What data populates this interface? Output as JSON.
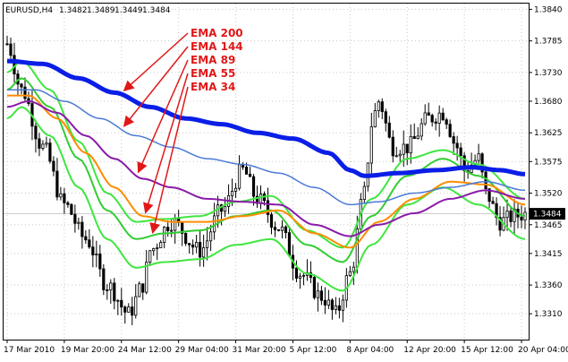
{
  "chart_data": {
    "type": "line",
    "title": "EURUSD,H4",
    "ohlc_header": [
      "1.3482",
      "1.3489",
      "1.3449",
      "1.3484"
    ],
    "ylim": [
      1.3265,
      1.385
    ],
    "y_ticks": [
      1.384,
      1.3785,
      1.373,
      1.368,
      1.3625,
      1.3575,
      1.352,
      1.3465,
      1.3415,
      1.336,
      1.331
    ],
    "y_tick_labels": [
      "1.3840",
      "1.3785",
      "1.3730",
      "1.3680",
      "1.3625",
      "1.3575",
      "1.3520",
      "1.3465",
      "1.3415",
      "1.3360",
      "1.3310"
    ],
    "current_price": "1.3484",
    "x_ticks": [
      {
        "label": "17 Mar 2010",
        "i": 0
      },
      {
        "label": "19 Mar 20:00",
        "i": 16
      },
      {
        "label": "24 Mar 12:00",
        "i": 32
      },
      {
        "label": "29 Mar 04:00",
        "i": 48
      },
      {
        "label": "31 Mar 20:00",
        "i": 64
      },
      {
        "label": "5 Apr 12:00",
        "i": 80
      },
      {
        "label": "8 Apr 04:00",
        "i": 96
      },
      {
        "label": "12 Apr 20:00",
        "i": 112
      },
      {
        "label": "15 Apr 12:00",
        "i": 128
      },
      {
        "label": "20 Apr 04:00",
        "i": 144
      }
    ],
    "bar_count": 146,
    "price_keypoints": [
      [
        0,
        1.378
      ],
      [
        4,
        1.37
      ],
      [
        10,
        1.36
      ],
      [
        16,
        1.35
      ],
      [
        22,
        1.344
      ],
      [
        28,
        1.336
      ],
      [
        34,
        1.331
      ],
      [
        38,
        1.336
      ],
      [
        40,
        1.342
      ],
      [
        46,
        1.347
      ],
      [
        54,
        1.342
      ],
      [
        60,
        1.349
      ],
      [
        66,
        1.356
      ],
      [
        70,
        1.351
      ],
      [
        76,
        1.346
      ],
      [
        82,
        1.338
      ],
      [
        88,
        1.334
      ],
      [
        92,
        1.331
      ],
      [
        96,
        1.338
      ],
      [
        100,
        1.352
      ],
      [
        102,
        1.364
      ],
      [
        104,
        1.368
      ],
      [
        108,
        1.36
      ],
      [
        112,
        1.36
      ],
      [
        118,
        1.365
      ],
      [
        122,
        1.366
      ],
      [
        126,
        1.36
      ],
      [
        128,
        1.356
      ],
      [
        132,
        1.358
      ],
      [
        134,
        1.352
      ],
      [
        138,
        1.347
      ],
      [
        142,
        1.348
      ],
      [
        145,
        1.3484
      ]
    ],
    "series": [
      {
        "name": "EMA 200",
        "color": "#0a1ee6",
        "period": 200,
        "values": [
          {
            "i": 0,
            "v": 1.375
          },
          {
            "i": 10,
            "v": 1.3745
          },
          {
            "i": 20,
            "v": 1.372
          },
          {
            "i": 30,
            "v": 1.3695
          },
          {
            "i": 40,
            "v": 1.367
          },
          {
            "i": 50,
            "v": 1.365
          },
          {
            "i": 60,
            "v": 1.364
          },
          {
            "i": 70,
            "v": 1.3625
          },
          {
            "i": 80,
            "v": 1.3615
          },
          {
            "i": 90,
            "v": 1.359
          },
          {
            "i": 96,
            "v": 1.356
          },
          {
            "i": 100,
            "v": 1.355
          },
          {
            "i": 110,
            "v": 1.3555
          },
          {
            "i": 120,
            "v": 1.356
          },
          {
            "i": 130,
            "v": 1.3565
          },
          {
            "i": 138,
            "v": 1.356
          },
          {
            "i": 145,
            "v": 1.3553
          }
        ]
      },
      {
        "name": "EMA 144",
        "color": "#4a7ad6",
        "period": 144,
        "values": [
          {
            "i": 0,
            "v": 1.37
          },
          {
            "i": 8,
            "v": 1.37
          },
          {
            "i": 16,
            "v": 1.368
          },
          {
            "i": 26,
            "v": 1.365
          },
          {
            "i": 36,
            "v": 1.362
          },
          {
            "i": 46,
            "v": 1.36
          },
          {
            "i": 56,
            "v": 1.358
          },
          {
            "i": 66,
            "v": 1.357
          },
          {
            "i": 76,
            "v": 1.3555
          },
          {
            "i": 86,
            "v": 1.353
          },
          {
            "i": 96,
            "v": 1.35
          },
          {
            "i": 104,
            "v": 1.3505
          },
          {
            "i": 114,
            "v": 1.352
          },
          {
            "i": 124,
            "v": 1.353
          },
          {
            "i": 134,
            "v": 1.354
          },
          {
            "i": 145,
            "v": 1.3525
          }
        ]
      },
      {
        "name": "EMA 89",
        "color": "#8a1aa8",
        "period": 89,
        "values": [
          {
            "i": 0,
            "v": 1.367
          },
          {
            "i": 6,
            "v": 1.368
          },
          {
            "i": 14,
            "v": 1.366
          },
          {
            "i": 22,
            "v": 1.362
          },
          {
            "i": 30,
            "v": 1.358
          },
          {
            "i": 38,
            "v": 1.3545
          },
          {
            "i": 46,
            "v": 1.353
          },
          {
            "i": 56,
            "v": 1.351
          },
          {
            "i": 66,
            "v": 1.3505
          },
          {
            "i": 76,
            "v": 1.35
          },
          {
            "i": 86,
            "v": 1.3465
          },
          {
            "i": 96,
            "v": 1.3445
          },
          {
            "i": 104,
            "v": 1.3465
          },
          {
            "i": 114,
            "v": 1.3485
          },
          {
            "i": 124,
            "v": 1.351
          },
          {
            "i": 134,
            "v": 1.3525
          },
          {
            "i": 145,
            "v": 1.351
          }
        ]
      },
      {
        "name": "EMA 55",
        "color": "#ff8c00",
        "period": 55,
        "values": [
          {
            "i": 0,
            "v": 1.369
          },
          {
            "i": 6,
            "v": 1.369
          },
          {
            "i": 14,
            "v": 1.365
          },
          {
            "i": 22,
            "v": 1.359
          },
          {
            "i": 30,
            "v": 1.353
          },
          {
            "i": 38,
            "v": 1.348
          },
          {
            "i": 46,
            "v": 1.347
          },
          {
            "i": 56,
            "v": 1.347
          },
          {
            "i": 66,
            "v": 1.348
          },
          {
            "i": 76,
            "v": 1.349
          },
          {
            "i": 86,
            "v": 1.345
          },
          {
            "i": 96,
            "v": 1.3425
          },
          {
            "i": 104,
            "v": 1.347
          },
          {
            "i": 114,
            "v": 1.351
          },
          {
            "i": 124,
            "v": 1.354
          },
          {
            "i": 134,
            "v": 1.3535
          },
          {
            "i": 145,
            "v": 1.35
          }
        ]
      },
      {
        "name": "EMA 34",
        "color": "#32cd32",
        "period": 34,
        "values": [
          {
            "i": 0,
            "v": 1.37
          },
          {
            "i": 4,
            "v": 1.372
          },
          {
            "i": 12,
            "v": 1.367
          },
          {
            "i": 20,
            "v": 1.358
          },
          {
            "i": 28,
            "v": 1.349
          },
          {
            "i": 36,
            "v": 1.344
          },
          {
            "i": 44,
            "v": 1.345
          },
          {
            "i": 54,
            "v": 1.3455
          },
          {
            "i": 64,
            "v": 1.348
          },
          {
            "i": 74,
            "v": 1.349
          },
          {
            "i": 84,
            "v": 1.343
          },
          {
            "i": 94,
            "v": 1.34
          },
          {
            "i": 102,
            "v": 1.348
          },
          {
            "i": 112,
            "v": 1.355
          },
          {
            "i": 122,
            "v": 1.358
          },
          {
            "i": 132,
            "v": 1.355
          },
          {
            "i": 145,
            "v": 1.348
          }
        ]
      }
    ],
    "ema_band": {
      "color": "#3fe63f",
      "upper": [
        {
          "i": 0,
          "v": 1.373
        },
        {
          "i": 4,
          "v": 1.375
        },
        {
          "i": 12,
          "v": 1.37
        },
        {
          "i": 20,
          "v": 1.361
        },
        {
          "i": 28,
          "v": 1.352
        },
        {
          "i": 36,
          "v": 1.347
        },
        {
          "i": 44,
          "v": 1.3475
        },
        {
          "i": 54,
          "v": 1.348
        },
        {
          "i": 64,
          "v": 1.3505
        },
        {
          "i": 74,
          "v": 1.3515
        },
        {
          "i": 84,
          "v": 1.3455
        },
        {
          "i": 94,
          "v": 1.3425
        },
        {
          "i": 102,
          "v": 1.351
        },
        {
          "i": 112,
          "v": 1.358
        },
        {
          "i": 122,
          "v": 1.3595
        },
        {
          "i": 132,
          "v": 1.357
        },
        {
          "i": 145,
          "v": 1.351
        }
      ],
      "lower": [
        {
          "i": 0,
          "v": 1.365
        },
        {
          "i": 4,
          "v": 1.367
        },
        {
          "i": 12,
          "v": 1.362
        },
        {
          "i": 20,
          "v": 1.353
        },
        {
          "i": 28,
          "v": 1.344
        },
        {
          "i": 36,
          "v": 1.339
        },
        {
          "i": 44,
          "v": 1.34
        },
        {
          "i": 54,
          "v": 1.3405
        },
        {
          "i": 64,
          "v": 1.343
        },
        {
          "i": 74,
          "v": 1.344
        },
        {
          "i": 84,
          "v": 1.338
        },
        {
          "i": 94,
          "v": 1.335
        },
        {
          "i": 102,
          "v": 1.343
        },
        {
          "i": 112,
          "v": 1.35
        },
        {
          "i": 122,
          "v": 1.353
        },
        {
          "i": 132,
          "v": 1.35
        },
        {
          "i": 145,
          "v": 1.344
        }
      ]
    },
    "annotations": [
      {
        "label": "EMA 200",
        "target_series": "EMA 200",
        "target_i": 32
      },
      {
        "label": "EMA 144",
        "target_series": "EMA 144",
        "target_i": 32
      },
      {
        "label": "EMA 89",
        "target_series": "EMA 89",
        "target_i": 36
      },
      {
        "label": "EMA 55",
        "target_series": "EMA 55",
        "target_i": 38
      },
      {
        "label": "EMA 34",
        "target_series": "EMA 34",
        "target_i": 40
      }
    ],
    "annotation_color": "#e01818",
    "grid": true,
    "legend": "none"
  }
}
